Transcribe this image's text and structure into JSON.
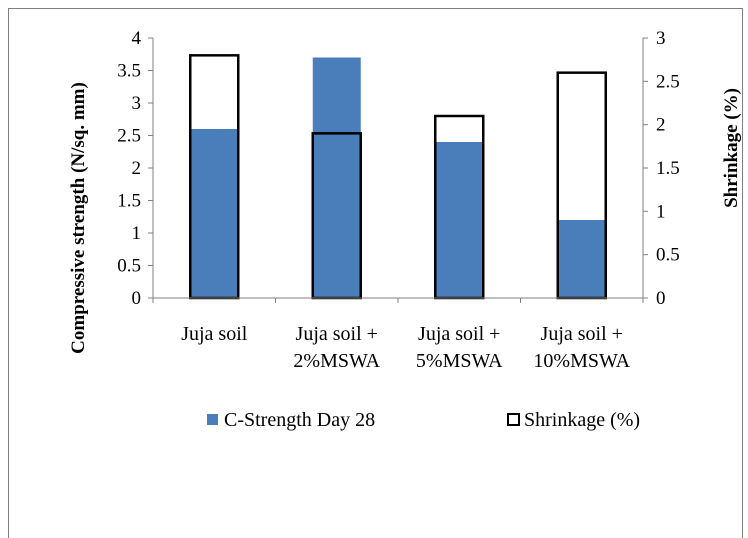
{
  "chart_data": {
    "type": "bar",
    "categories": [
      [
        "Juja soil"
      ],
      [
        "Juja soil +",
        "2%MSWA"
      ],
      [
        "Juja soil +",
        "5%MSWA"
      ],
      [
        "Juja soil +",
        "10%MSWA"
      ]
    ],
    "series": [
      {
        "name": "C-Strength Day 28",
        "axis": "left",
        "values": [
          2.6,
          3.7,
          2.4,
          1.2
        ],
        "fill": "#4a7ebb",
        "stroke": "none"
      },
      {
        "name": "Shrinkage (%)",
        "axis": "right",
        "values": [
          2.8,
          1.9,
          2.1,
          2.6
        ],
        "fill": "none",
        "stroke": "#000000"
      }
    ],
    "ylabel": "Compressive strength (N/sq. mm)",
    "y2label": "Shrinkage (%)",
    "ylim": [
      0,
      4
    ],
    "y2lim": [
      0,
      3
    ],
    "yticks": [
      "0",
      "0.5",
      "1",
      "1.5",
      "2",
      "2.5",
      "3",
      "3.5",
      "4"
    ],
    "y2ticks": [
      "0",
      "0.5",
      "1",
      "1.5",
      "2",
      "2.5",
      "3"
    ],
    "grid": false,
    "legend_position": "bottom"
  }
}
